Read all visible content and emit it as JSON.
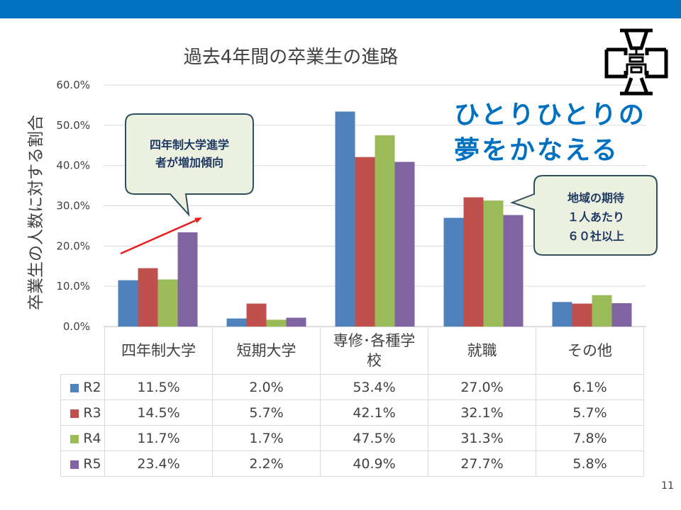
{
  "page_number": "11",
  "tagline": {
    "line1": "ひとりひとりの",
    "line2": "夢をかなえる"
  },
  "callouts": [
    {
      "text_line1": "四年制大学進学",
      "text_line2": "者が増加傾向"
    },
    {
      "text_line1": "地域の期待",
      "text_line2": "１人あたり",
      "text_line3": "６０社以上"
    }
  ],
  "colors": {
    "top_bar": "#0070c0",
    "R2": "#4f81bd",
    "R3": "#c0504d",
    "R4": "#9bbb59",
    "R5": "#8064a2",
    "callout_fill": "#ebf1de",
    "callout_border": "#2f4f5f",
    "trend_arrow": "#e81e1e"
  },
  "logo": {
    "name": "school-emblem-icon"
  },
  "chart_data": {
    "type": "bar",
    "title": "過去4年間の卒業生の進路",
    "ylabel": "卒業生の人数に対する割合",
    "xlabel": "",
    "ylim": [
      0,
      60
    ],
    "yticks": [
      "0.0%",
      "10.0%",
      "20.0%",
      "30.0%",
      "40.0%",
      "50.0%",
      "60.0%"
    ],
    "grid": true,
    "legend": "data-table",
    "categories": [
      "四年制大学",
      "短期大学",
      "専修･各種学校",
      "就職",
      "その他"
    ],
    "category_display": [
      [
        "四年制大学"
      ],
      [
        "短期大学"
      ],
      [
        "専修･各種学",
        "校"
      ],
      [
        "就職"
      ],
      [
        "その他"
      ]
    ],
    "series": [
      {
        "name": "R2",
        "values": [
          11.5,
          2.0,
          53.4,
          27.0,
          6.1
        ],
        "labels": [
          "11.5%",
          "2.0%",
          "53.4%",
          "27.0%",
          "6.1%"
        ]
      },
      {
        "name": "R3",
        "values": [
          14.5,
          5.7,
          42.1,
          32.1,
          5.7
        ],
        "labels": [
          "14.5%",
          "5.7%",
          "42.1%",
          "32.1%",
          "5.7%"
        ]
      },
      {
        "name": "R4",
        "values": [
          11.7,
          1.7,
          47.5,
          31.3,
          7.8
        ],
        "labels": [
          "11.7%",
          "1.7%",
          "47.5%",
          "31.3%",
          "7.8%"
        ]
      },
      {
        "name": "R5",
        "values": [
          23.4,
          2.2,
          40.9,
          27.7,
          5.8
        ],
        "labels": [
          "23.4%",
          "2.2%",
          "40.9%",
          "27.7%",
          "5.8%"
        ]
      }
    ]
  }
}
